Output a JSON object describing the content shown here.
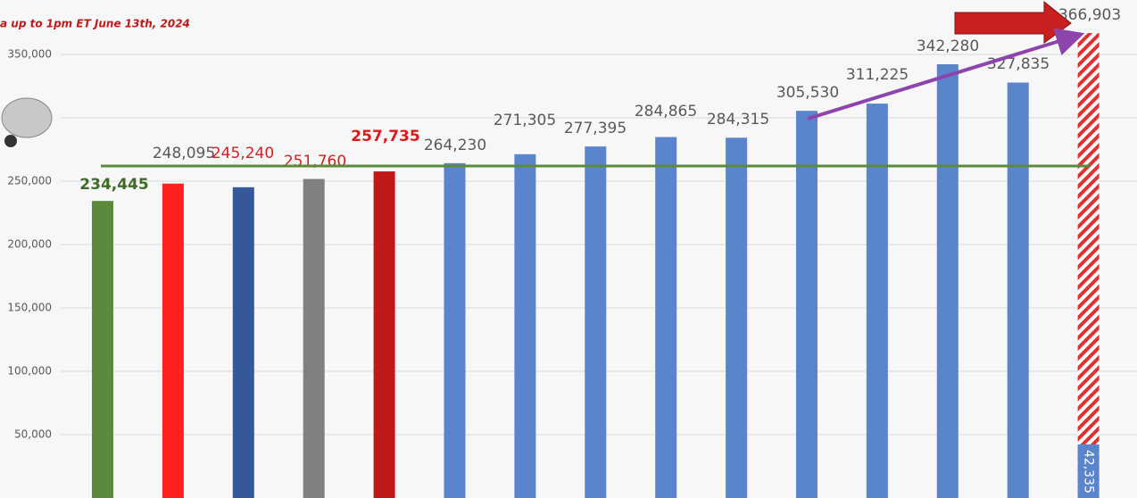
{
  "chart_data": {
    "type": "bar",
    "subtitle": "a up to 1pm ET June 13th, 2024",
    "values": [
      234445,
      248095,
      245240,
      251760,
      257735,
      264230,
      271305,
      277395,
      284865,
      284315,
      305530,
      311225,
      342280,
      327835,
      366903
    ],
    "value_labels": [
      "234,445",
      "248,095",
      "245,240",
      "251,760",
      "257,735",
      "264,230",
      "271,305",
      "277,395",
      "284,865",
      "284,315",
      "305,530",
      "311,225",
      "342,280",
      "327,835",
      "366,903"
    ],
    "colors": [
      "#5b8a3c",
      "#ff2020",
      "#34589a",
      "#808080",
      "#c01818",
      "#5a84cc",
      "#5a84cc",
      "#5a84cc",
      "#5a84cc",
      "#5a84cc",
      "#5a84cc",
      "#5a84cc",
      "#5a84cc",
      "#5a84cc",
      "#e03030"
    ],
    "label_colors": [
      "#3f6b26",
      "#595959",
      "#d42020",
      "#d42020",
      "#e01818",
      "#595959",
      "#595959",
      "#595959",
      "#595959",
      "#595959",
      "#595959",
      "#595959",
      "#595959",
      "#595959",
      "#595959"
    ],
    "current_value": 42335,
    "current_label": "42,335",
    "current_color": "#5a84cc",
    "reference_line": 262000,
    "reference_color": "#5b8a3c",
    "ylim": [
      0,
      393000
    ],
    "yticks": [
      {
        "value": 50000,
        "label": "50,000"
      },
      {
        "value": 100000,
        "label": "100,000"
      },
      {
        "value": 150000,
        "label": "150,000"
      },
      {
        "value": 200000,
        "label": "200,000"
      },
      {
        "value": 250000,
        "label": "250,000"
      },
      {
        "value": 300000,
        "label": "300,000"
      },
      {
        "value": 350000,
        "label": "350,000"
      }
    ],
    "grid": true
  }
}
